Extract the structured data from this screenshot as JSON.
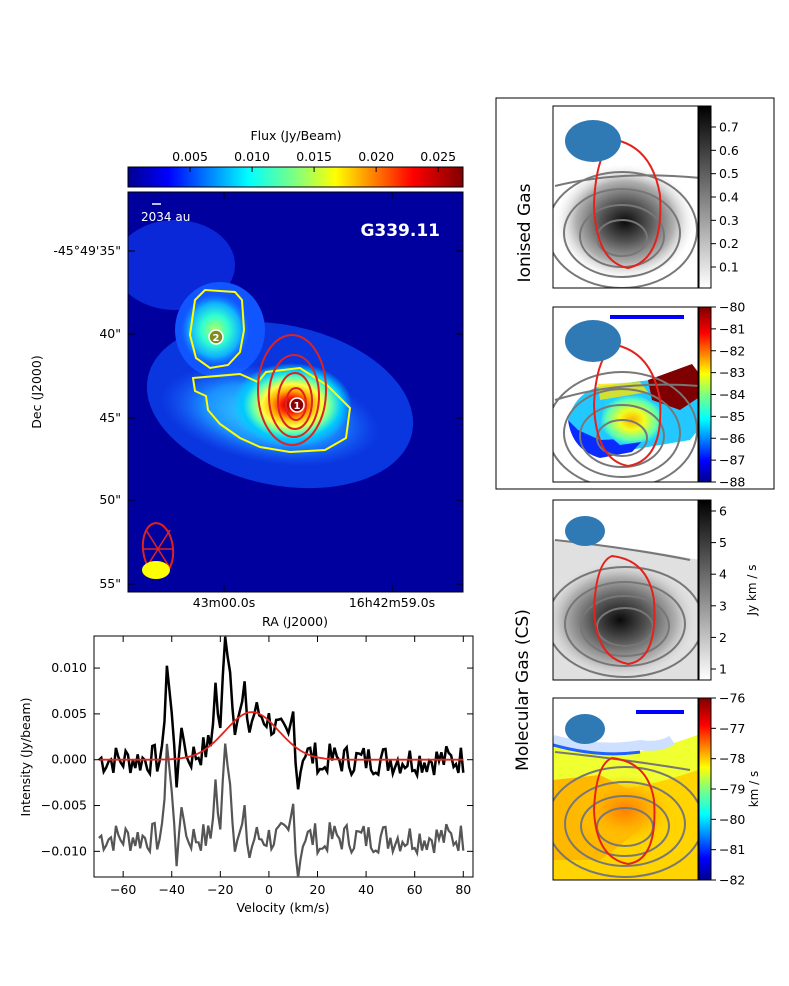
{
  "chart_data": [
    {
      "id": "flux_map",
      "type": "heatmap",
      "title": "G339.11",
      "colorbar_label": "Flux (Jy/Beam)",
      "colorbar_ticks": [
        "0.005",
        "0.010",
        "0.015",
        "0.020",
        "0.025"
      ],
      "colorbar_range": [
        0.0,
        0.027
      ],
      "xlabel": "RA (J2000)",
      "ylabel": "Dec (J2000)",
      "x_ticks": [
        "43m00.0s",
        "16h42m59.0s"
      ],
      "y_ticks": [
        "-45°49'35\"",
        "40\"",
        "45\"",
        "50\"",
        "55\""
      ],
      "scale_bar_label": "2034 au",
      "sources": [
        {
          "label": "1"
        },
        {
          "label": "2"
        }
      ]
    },
    {
      "id": "spectrum",
      "type": "line",
      "xlabel": "Velocity (km/s)",
      "ylabel": "Intensity (Jy/beam)",
      "xlim": [
        -72,
        84
      ],
      "ylim": [
        -0.0128,
        0.0135
      ],
      "x_ticks": [
        -60,
        -40,
        -20,
        0,
        20,
        40,
        60,
        80
      ],
      "x_tick_labels": [
        "−60",
        "−40",
        "−20",
        "0",
        "20",
        "40",
        "60",
        "80"
      ],
      "y_ticks": [
        0.01,
        0.005,
        0.0,
        -0.005,
        -0.01
      ],
      "y_tick_labels": [
        "0.010",
        "0.005",
        "0.000",
        "−0.005",
        "−0.010"
      ],
      "series": [
        {
          "name": "spectrum",
          "color": "#000000"
        },
        {
          "name": "residual",
          "color": "#555555",
          "offset": -0.0085
        },
        {
          "name": "gaussian-fit",
          "color": "#e3221c",
          "amplitude": 0.0052,
          "center": -7,
          "sigma": 11
        }
      ]
    },
    {
      "id": "ionised_moment0",
      "type": "heatmap",
      "panel_label": "Ionised Gas",
      "colorbar_ticks": [
        "0.7",
        "0.6",
        "0.5",
        "0.4",
        "0.3",
        "0.2",
        "0.1"
      ],
      "colormap": "gray"
    },
    {
      "id": "ionised_velocity",
      "type": "heatmap",
      "colorbar_ticks": [
        "−80",
        "−81",
        "−82",
        "−83",
        "−84",
        "−85",
        "−86",
        "−87",
        "−88"
      ],
      "colormap": "jet"
    },
    {
      "id": "molecular_moment0",
      "type": "heatmap",
      "panel_label": "Molecular Gas (CS)",
      "colorbar_label": "Jy km / s",
      "colorbar_ticks": [
        "6",
        "5",
        "4",
        "3",
        "2",
        "1"
      ],
      "colormap": "gray"
    },
    {
      "id": "molecular_velocity",
      "type": "heatmap",
      "colorbar_label": "km / s",
      "colorbar_ticks": [
        "−76",
        "−77",
        "−78",
        "−79",
        "−80",
        "−81",
        "−82"
      ],
      "colormap": "jet"
    }
  ]
}
